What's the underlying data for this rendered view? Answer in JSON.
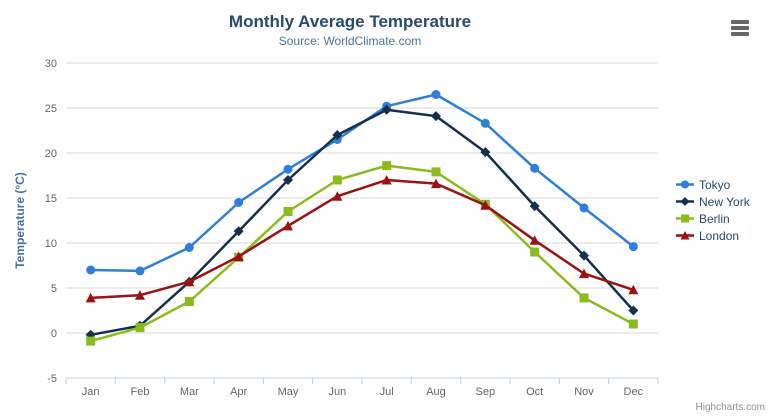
{
  "chart": {
    "title": "Monthly Average Temperature",
    "subtitle": "Source: WorldClimate.com",
    "credits": "Highcharts.com",
    "menu_icon": "hamburger-icon",
    "background_color": "#ffffff",
    "grid_color": "#d8d8d8",
    "axis_line_color": "#c0d0e0",
    "tick_label_color": "#666666",
    "title_color": "#274b6d",
    "subtitle_color": "#4d759e",
    "yaxis_title_color": "#4572a7",
    "legend_text_color": "#274b6d"
  },
  "chart_data": {
    "type": "line",
    "title": "Monthly Average Temperature",
    "subtitle": "Source: WorldClimate.com",
    "categories": [
      "Jan",
      "Feb",
      "Mar",
      "Apr",
      "May",
      "Jun",
      "Jul",
      "Aug",
      "Sep",
      "Oct",
      "Nov",
      "Dec"
    ],
    "xlabel": "",
    "ylabel": "Temperature (°C)",
    "ylim": [
      -5,
      30
    ],
    "ytick_step": 5,
    "yticks": [
      -5,
      0,
      5,
      10,
      15,
      20,
      25,
      30
    ],
    "grid": true,
    "legend_position": "right",
    "series": [
      {
        "name": "Tokyo",
        "color": "#2f7ed8",
        "marker": "circle",
        "values": [
          7.0,
          6.9,
          9.5,
          14.5,
          18.2,
          21.5,
          25.2,
          26.5,
          23.3,
          18.3,
          13.9,
          9.6
        ]
      },
      {
        "name": "New York",
        "color": "#14304f",
        "marker": "diamond",
        "values": [
          -0.2,
          0.8,
          5.7,
          11.3,
          17.0,
          22.0,
          24.8,
          24.1,
          20.1,
          14.1,
          8.6,
          2.5
        ]
      },
      {
        "name": "Berlin",
        "color": "#8abb1f",
        "marker": "square",
        "values": [
          -0.9,
          0.6,
          3.5,
          8.4,
          13.5,
          17.0,
          18.6,
          17.9,
          14.3,
          9.0,
          3.9,
          1.0
        ]
      },
      {
        "name": "London",
        "color": "#9c1111",
        "marker": "triangle",
        "values": [
          3.9,
          4.2,
          5.7,
          8.5,
          11.9,
          15.2,
          17.0,
          16.6,
          14.2,
          10.3,
          6.6,
          4.8
        ]
      }
    ]
  }
}
